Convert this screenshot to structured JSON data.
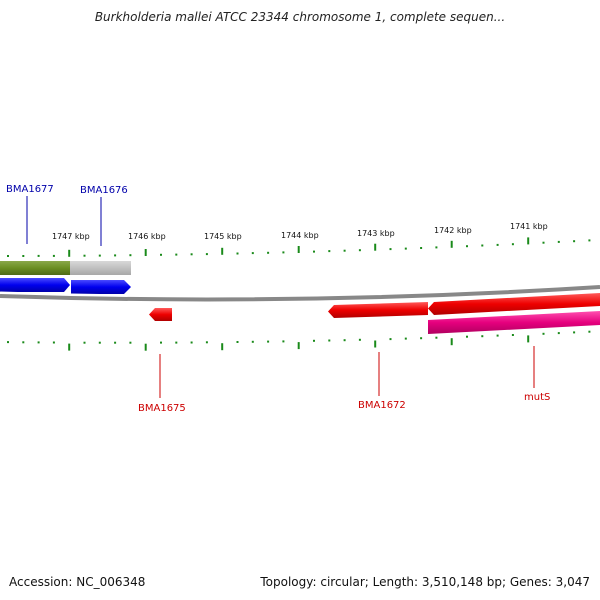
{
  "header": {
    "title": "Burkholderia mallei ATCC 23344 chromosome 1, complete sequen..."
  },
  "scale_labels": [
    "1747 kbp",
    "1746 kbp",
    "1745 kbp",
    "1744 kbp",
    "1743 kbp",
    "1742 kbp",
    "1741 kbp"
  ],
  "gene_labels": {
    "top": [
      "BMA1677",
      "BMA1676"
    ],
    "bottom": [
      "BMA1675",
      "BMA1672",
      "mutS"
    ]
  },
  "colors": {
    "forward_label": "#0000aa",
    "reverse_label": "#cc0000",
    "tick": "#1a8a1a",
    "backbone": "#888888",
    "olive_feature": "#6b8e23",
    "grey_feature": "#c0c0c0",
    "blue_feature": "#0000ee",
    "red_feature": "#ee0000",
    "pink_feature": "#e6007e"
  },
  "footer": {
    "accession": "Accession: NC_006348",
    "summary": "Topology: circular; Length: 3,510,148 bp; Genes: 3,047"
  }
}
